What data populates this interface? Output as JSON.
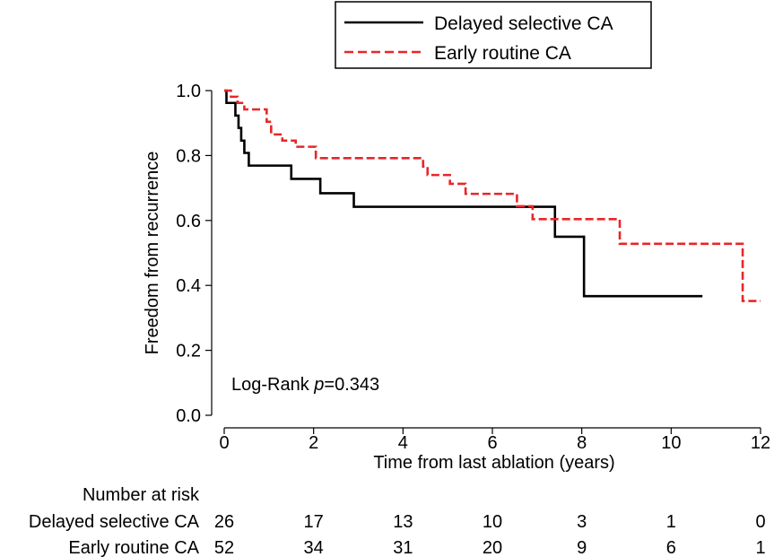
{
  "chart_data": {
    "type": "line",
    "title": "",
    "xlabel": "Time from last ablation (years)",
    "ylabel": "Freedom from recurrence",
    "xlim": [
      0,
      12
    ],
    "ylim": [
      0,
      1.0
    ],
    "x_ticks": [
      "0",
      "2",
      "4",
      "6",
      "8",
      "10",
      "12"
    ],
    "x_tick_values": [
      0,
      2,
      4,
      6,
      8,
      10,
      12
    ],
    "y_ticks": [
      "0.0",
      "0.2",
      "0.4",
      "0.6",
      "0.8",
      "1.0"
    ],
    "y_tick_values": [
      0,
      0.2,
      0.4,
      0.6,
      0.8,
      1.0
    ],
    "grid": false,
    "legend_position": "top-right",
    "annotation": {
      "prefix": "Log-Rank ",
      "italic": "p",
      "suffix": "=0.343"
    },
    "series": [
      {
        "name": "Delayed selective CA",
        "color": "#000000",
        "style": "solid",
        "points": [
          [
            0,
            1.0
          ],
          [
            0.05,
            1.0
          ],
          [
            0.05,
            0.962
          ],
          [
            0.25,
            0.962
          ],
          [
            0.25,
            0.923
          ],
          [
            0.32,
            0.923
          ],
          [
            0.32,
            0.885
          ],
          [
            0.38,
            0.885
          ],
          [
            0.38,
            0.846
          ],
          [
            0.45,
            0.846
          ],
          [
            0.45,
            0.808
          ],
          [
            0.55,
            0.808
          ],
          [
            0.55,
            0.769
          ],
          [
            1.5,
            0.769
          ],
          [
            1.5,
            0.728
          ],
          [
            2.15,
            0.728
          ],
          [
            2.15,
            0.684
          ],
          [
            2.9,
            0.684
          ],
          [
            2.9,
            0.642
          ],
          [
            7.4,
            0.642
          ],
          [
            7.4,
            0.55
          ],
          [
            8.05,
            0.55
          ],
          [
            8.05,
            0.367
          ],
          [
            10.7,
            0.367
          ]
        ]
      },
      {
        "name": "Early routine CA",
        "color": "#e8262a",
        "style": "dashed",
        "points": [
          [
            0,
            1.0
          ],
          [
            0.15,
            1.0
          ],
          [
            0.15,
            0.981
          ],
          [
            0.3,
            0.981
          ],
          [
            0.3,
            0.962
          ],
          [
            0.45,
            0.962
          ],
          [
            0.45,
            0.942
          ],
          [
            0.95,
            0.942
          ],
          [
            0.95,
            0.904
          ],
          [
            1.05,
            0.904
          ],
          [
            1.05,
            0.865
          ],
          [
            1.3,
            0.865
          ],
          [
            1.3,
            0.846
          ],
          [
            1.6,
            0.846
          ],
          [
            1.6,
            0.827
          ],
          [
            2.05,
            0.827
          ],
          [
            2.05,
            0.792
          ],
          [
            4.45,
            0.792
          ],
          [
            4.45,
            0.766
          ],
          [
            4.55,
            0.766
          ],
          [
            4.55,
            0.74
          ],
          [
            5.05,
            0.74
          ],
          [
            5.05,
            0.713
          ],
          [
            5.4,
            0.713
          ],
          [
            5.4,
            0.682
          ],
          [
            6.55,
            0.682
          ],
          [
            6.55,
            0.644
          ],
          [
            6.9,
            0.644
          ],
          [
            6.9,
            0.604
          ],
          [
            8.85,
            0.604
          ],
          [
            8.85,
            0.528
          ],
          [
            11.6,
            0.528
          ],
          [
            11.6,
            0.352
          ],
          [
            12.0,
            0.352
          ]
        ]
      }
    ],
    "risk_table": {
      "title": "Number at risk",
      "times": [
        0,
        2,
        4,
        6,
        8,
        10,
        12
      ],
      "rows": [
        {
          "label": "Delayed selective CA",
          "values": [
            "26",
            "17",
            "13",
            "10",
            "3",
            "1",
            "0"
          ]
        },
        {
          "label": "Early routine CA",
          "values": [
            "52",
            "34",
            "31",
            "20",
            "9",
            "6",
            "1"
          ]
        }
      ]
    }
  }
}
